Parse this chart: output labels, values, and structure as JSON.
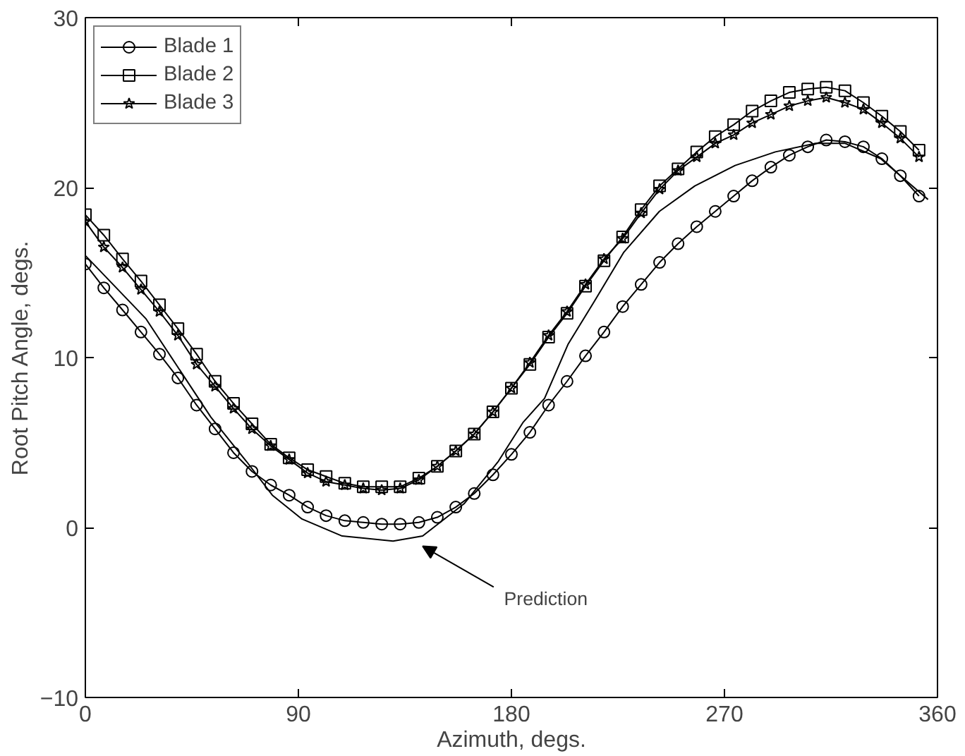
{
  "chart_data": {
    "type": "line",
    "xlabel": "Azimuth, degs.",
    "ylabel": "Root Pitch Angle, degs.",
    "xlim": [
      0,
      360
    ],
    "ylim": [
      -10,
      30
    ],
    "xticks": [
      0,
      90,
      180,
      270,
      360
    ],
    "yticks": [
      {
        "value": -10,
        "label": "−10"
      },
      0,
      10,
      20,
      30
    ],
    "grid": false,
    "legend": "top left",
    "annotations": [
      {
        "text": "Prediction",
        "x": 142.5,
        "y": -0.5
      }
    ],
    "series": [
      {
        "name": "Blade 1",
        "color": "#000000",
        "marker": "circle",
        "x": [
          0,
          7.8,
          15.7,
          23.5,
          31.3,
          39.1,
          47,
          54.8,
          62.6,
          70.4,
          78.3,
          86.1,
          93.9,
          101.7,
          109.6,
          117.4,
          125.2,
          133,
          140.9,
          148.7,
          156.5,
          164.3,
          172.2,
          180,
          187.8,
          195.7,
          203.5,
          211.3,
          219.1,
          227,
          234.8,
          242.6,
          250.4,
          258.3,
          266.1,
          273.9,
          281.7,
          289.6,
          297.4,
          305.2,
          313,
          320.9,
          328.7,
          336.5,
          344.3,
          352.2
        ],
        "values": [
          15.5,
          14.1,
          12.8,
          11.5,
          10.2,
          8.8,
          7.2,
          5.8,
          4.4,
          3.3,
          2.5,
          1.9,
          1.2,
          0.7,
          0.4,
          0.3,
          0.2,
          0.2,
          0.3,
          0.6,
          1.2,
          2.0,
          3.1,
          4.3,
          5.6,
          7.2,
          8.6,
          10.1,
          11.5,
          13.0,
          14.3,
          15.6,
          16.7,
          17.7,
          18.6,
          19.5,
          20.4,
          21.2,
          21.9,
          22.4,
          22.8,
          22.7,
          22.4,
          21.7,
          20.7,
          19.5
        ]
      },
      {
        "name": "Blade 2",
        "color": "#000000",
        "marker": "square",
        "x": [
          0,
          7.8,
          15.7,
          23.5,
          31.3,
          39.1,
          47,
          54.8,
          62.6,
          70.4,
          78.3,
          86.1,
          93.9,
          101.7,
          109.6,
          117.4,
          125.2,
          133,
          140.9,
          148.7,
          156.5,
          164.3,
          172.2,
          180,
          187.8,
          195.7,
          203.5,
          211.3,
          219.1,
          227,
          234.8,
          242.6,
          250.4,
          258.3,
          266.1,
          273.9,
          281.7,
          289.6,
          297.4,
          305.2,
          313,
          320.9,
          328.7,
          336.5,
          344.3,
          352.2
        ],
        "values": [
          18.4,
          17.2,
          15.8,
          14.5,
          13.1,
          11.7,
          10.2,
          8.6,
          7.3,
          6.1,
          4.9,
          4.1,
          3.4,
          3.0,
          2.6,
          2.4,
          2.4,
          2.4,
          2.9,
          3.6,
          4.5,
          5.5,
          6.8,
          8.2,
          9.6,
          11.2,
          12.6,
          14.2,
          15.7,
          17.1,
          18.7,
          20.1,
          21.1,
          22.1,
          23.0,
          23.7,
          24.5,
          25.1,
          25.6,
          25.8,
          25.9,
          25.7,
          25.0,
          24.2,
          23.3,
          22.2
        ]
      },
      {
        "name": "Blade 3",
        "color": "#000000",
        "marker": "star",
        "x": [
          0,
          7.8,
          15.7,
          23.5,
          31.3,
          39.1,
          47,
          54.8,
          62.6,
          70.4,
          78.3,
          86.1,
          93.9,
          101.7,
          109.6,
          117.4,
          125.2,
          133,
          140.9,
          148.7,
          156.5,
          164.3,
          172.2,
          180,
          187.8,
          195.7,
          203.5,
          211.3,
          219.1,
          227,
          234.8,
          242.6,
          250.4,
          258.3,
          266.1,
          273.9,
          281.7,
          289.6,
          297.4,
          305.2,
          313,
          320.9,
          328.7,
          336.5,
          344.3,
          352.2
        ],
        "values": [
          18.0,
          16.5,
          15.3,
          14.0,
          12.7,
          11.3,
          9.6,
          8.3,
          7.0,
          5.8,
          4.8,
          4.0,
          3.2,
          2.7,
          2.5,
          2.3,
          2.2,
          2.3,
          2.8,
          3.6,
          4.5,
          5.5,
          6.8,
          8.2,
          9.7,
          11.3,
          12.7,
          14.3,
          15.8,
          17.0,
          18.5,
          19.9,
          21.0,
          21.8,
          22.6,
          23.1,
          23.8,
          24.3,
          24.8,
          25.1,
          25.3,
          25.0,
          24.6,
          23.8,
          22.9,
          21.8
        ]
      },
      {
        "color": "#000000",
        "marker": "none",
        "x": [
          0,
          25.5,
          53,
          68,
          79,
          91.5,
          108.5,
          130,
          142.5,
          160,
          174.5,
          185,
          194,
          204,
          215,
          227.5,
          242.5,
          257.5,
          274.5,
          291.5,
          308.5,
          321,
          336,
          356
        ],
        "values": [
          16.0,
          12.3,
          6.5,
          3.9,
          1.9,
          0.5,
          -0.5,
          -0.8,
          -0.5,
          1.4,
          3.9,
          6.2,
          7.6,
          10.8,
          13.3,
          16.2,
          18.6,
          20.1,
          21.3,
          22.1,
          22.6,
          22.6,
          21.7,
          19.3
        ]
      }
    ]
  }
}
